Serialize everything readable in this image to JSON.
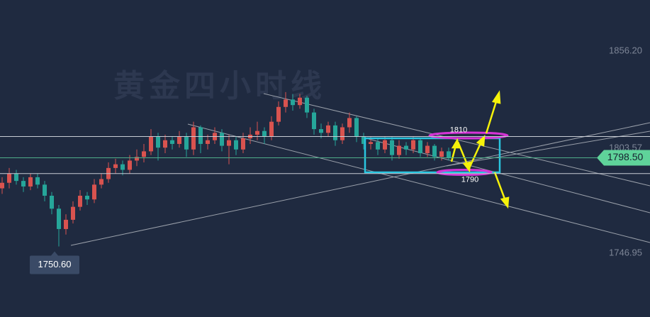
{
  "chart_data": {
    "type": "candlestick",
    "watermark": "黄金四小时线",
    "open": [
      1782,
      1785,
      1790,
      1786,
      1783,
      1788,
      1784,
      1778,
      1771,
      1760,
      1765,
      1772,
      1778,
      1776,
      1784,
      1787,
      1793,
      1795,
      1792,
      1797,
      1799,
      1802,
      1810,
      1804,
      1808,
      1806,
      1810,
      1803,
      1815,
      1806,
      1808,
      1812,
      1805,
      1808,
      1803,
      1809,
      1811,
      1813,
      1810,
      1818,
      1826,
      1830,
      1827,
      1831,
      1823,
      1814,
      1812,
      1816,
      1808,
      1815,
      1820,
      1810,
      1806,
      1807,
      1803,
      1808,
      1800,
      1805,
      1803,
      1808,
      1801,
      1805,
      1799,
      1802
    ],
    "high": [
      1788,
      1793,
      1792,
      1788,
      1790,
      1790,
      1786,
      1780,
      1773,
      1768,
      1775,
      1781,
      1780,
      1787,
      1790,
      1796,
      1798,
      1797,
      1800,
      1803,
      1806,
      1814,
      1812,
      1811,
      1810,
      1813,
      1812,
      1818,
      1816,
      1811,
      1815,
      1814,
      1811,
      1810,
      1812,
      1815,
      1818,
      1815,
      1821,
      1829,
      1834,
      1833,
      1833,
      1832,
      1825,
      1817,
      1818,
      1818,
      1817,
      1823,
      1821,
      1812,
      1810,
      1809,
      1810,
      1810,
      1808,
      1807,
      1810,
      1809,
      1807,
      1806,
      1804,
      1804
    ],
    "low": [
      1779,
      1782,
      1784,
      1780,
      1781,
      1782,
      1775,
      1768,
      1750.6,
      1757,
      1763,
      1770,
      1773,
      1774,
      1782,
      1785,
      1790,
      1789,
      1790,
      1794,
      1796,
      1800,
      1797,
      1801,
      1803,
      1804,
      1799,
      1800,
      1801,
      1803,
      1806,
      1802,
      1795,
      1800,
      1801,
      1806,
      1808,
      1806,
      1808,
      1816,
      1823,
      1824,
      1825,
      1820,
      1811,
      1809,
      1810,
      1805,
      1806,
      1812,
      1807,
      1803,
      1803,
      1800,
      1801,
      1797,
      1798,
      1800,
      1801,
      1799,
      1799,
      1797,
      1797,
      1797
    ],
    "close": [
      1785,
      1790,
      1786,
      1783,
      1788,
      1784,
      1778,
      1771,
      1760,
      1765,
      1772,
      1778,
      1776,
      1784,
      1787,
      1793,
      1795,
      1792,
      1797,
      1799,
      1802,
      1810,
      1804,
      1808,
      1806,
      1810,
      1803,
      1815,
      1806,
      1808,
      1812,
      1805,
      1808,
      1803,
      1809,
      1811,
      1813,
      1810,
      1818,
      1826,
      1830,
      1827,
      1831,
      1823,
      1814,
      1812,
      1816,
      1808,
      1815,
      1820,
      1810,
      1806,
      1807,
      1803,
      1808,
      1800,
      1805,
      1803,
      1808,
      1801,
      1805,
      1799,
      1802,
      1798.5
    ],
    "up_color": "#d9534f",
    "down_color": "#26a69a",
    "ylim": [
      1712.45,
      1883.8
    ],
    "yticks": [
      {
        "value": 1856.2,
        "label": "1856.20"
      },
      {
        "value": 1803.57,
        "label": "1803.57"
      },
      {
        "value": 1746.95,
        "label": "1746.95"
      }
    ],
    "levels": [
      1810,
      1790
    ],
    "last_price": {
      "value": 1798.5,
      "label": "1798.50"
    },
    "low_marker": {
      "value": 1750.6,
      "label": "1750.60"
    }
  }
}
